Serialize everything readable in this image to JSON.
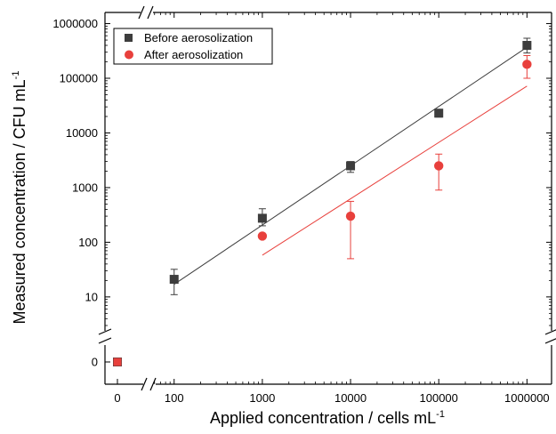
{
  "chart_data": {
    "type": "scatter",
    "xlabel": "Applied concentration / cells mL",
    "xlabel_sup": "-1",
    "ylabel": "Measured concentration / CFU mL",
    "ylabel_sup": "-1",
    "x_scale": "log",
    "y_scale": "log",
    "axis_breaks": true,
    "x_ticks": [
      {
        "value": 100,
        "label": "100"
      },
      {
        "value": 1000,
        "label": "1000"
      },
      {
        "value": 10000,
        "label": "10000"
      },
      {
        "value": 100000,
        "label": "100000"
      },
      {
        "value": 1000000,
        "label": "1000000"
      }
    ],
    "y_ticks": [
      {
        "value": 10,
        "label": "10"
      },
      {
        "value": 100,
        "label": "100"
      },
      {
        "value": 1000,
        "label": "1000"
      },
      {
        "value": 10000,
        "label": "10000"
      },
      {
        "value": 100000,
        "label": "100000"
      },
      {
        "value": 1000000,
        "label": "1000000"
      }
    ],
    "zero_tick_label": "0",
    "xlim": [
      55,
      1900000
    ],
    "ylim": [
      3,
      1600000
    ],
    "legend_position": "top-left",
    "series": [
      {
        "name": "Before aerosolization",
        "marker": "square",
        "color": "#3d3d3d",
        "points": [
          {
            "x": 100,
            "y": 21,
            "ylo": 11,
            "yhi": 32
          },
          {
            "x": 1000,
            "y": 275,
            "ylo": 200,
            "yhi": 410
          },
          {
            "x": 10000,
            "y": 2500,
            "ylo": 1900,
            "yhi": 3000
          },
          {
            "x": 100000,
            "y": 23000,
            "ylo": 19500,
            "yhi": 27000
          },
          {
            "x": 1000000,
            "y": 400000,
            "ylo": 290000,
            "yhi": 540000
          }
        ],
        "zero_point": {
          "x": 0,
          "y": 0
        },
        "fit": {
          "x_start": 100,
          "y_start": 17,
          "x_end": 1000000,
          "y_end": 370000
        }
      },
      {
        "name": "After aerosolization",
        "marker": "circle",
        "color": "#e8403c",
        "points": [
          {
            "x": 1000,
            "y": 130,
            "ylo": 130,
            "yhi": 130
          },
          {
            "x": 10000,
            "y": 300,
            "ylo": 50,
            "yhi": 560
          },
          {
            "x": 100000,
            "y": 2500,
            "ylo": 900,
            "yhi": 4100
          },
          {
            "x": 1000000,
            "y": 180000,
            "ylo": 100000,
            "yhi": 260000
          }
        ],
        "zero_point": {
          "x": 0,
          "y": 0
        },
        "fit": {
          "x_start": 1000,
          "y_start": 58,
          "x_end": 1000000,
          "y_end": 72000
        }
      }
    ]
  }
}
